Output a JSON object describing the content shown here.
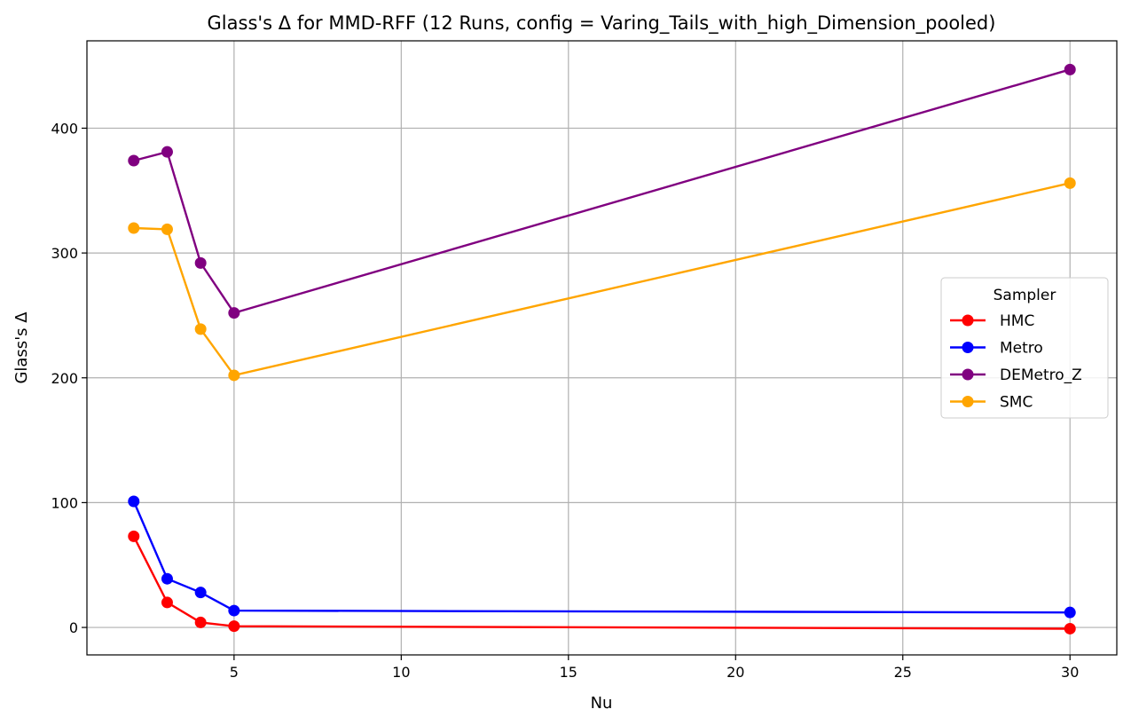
{
  "chart_data": {
    "type": "line",
    "title": "Glass's Δ for MMD-RFF (12 Runs, config = Varing_Tails_with_high_Dimension_pooled)",
    "xlabel": "Nu",
    "ylabel": "Glass's Δ",
    "xlim": [
      0.6,
      31.4
    ],
    "ylim": [
      -22,
      470
    ],
    "x_ticks": [
      5,
      10,
      15,
      20,
      25,
      30
    ],
    "y_ticks": [
      0,
      100,
      200,
      300,
      400
    ],
    "grid": true,
    "legend": {
      "title": "Sampler",
      "position": "center-right"
    },
    "x": [
      2,
      3,
      4,
      5,
      30
    ],
    "series": [
      {
        "name": "HMC",
        "color": "#ff0000",
        "values": [
          73,
          20,
          4,
          1,
          -1
        ]
      },
      {
        "name": "Metro",
        "color": "#0000ff",
        "values": [
          101,
          39,
          28,
          13.5,
          12
        ]
      },
      {
        "name": "DEMetro_Z",
        "color": "#800080",
        "values": [
          374,
          381,
          292,
          252,
          447
        ]
      },
      {
        "name": "SMC",
        "color": "#ffa500",
        "values": [
          320,
          319,
          239,
          202,
          356
        ]
      }
    ]
  }
}
